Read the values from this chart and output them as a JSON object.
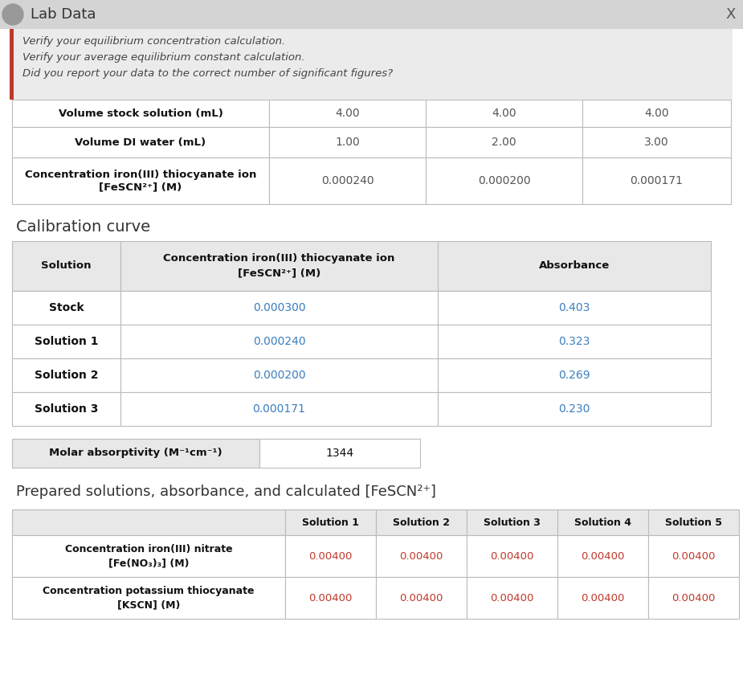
{
  "title": "Lab Data",
  "close_btn": "X",
  "alert_lines": [
    "Verify your equilibrium concentration calculation.",
    "Verify your average equilibrium constant calculation.",
    "Did you report your data to the correct number of significant figures?"
  ],
  "top_table": {
    "row_labels": [
      "Volume stock solution (mL)",
      "Volume DI water (mL)",
      "Concentration iron(III) thiocyanate ion\n[FeSCN²⁺] (M)"
    ],
    "values": [
      [
        "4.00",
        "4.00",
        "4.00"
      ],
      [
        "1.00",
        "2.00",
        "3.00"
      ],
      [
        "0.000240",
        "0.000200",
        "0.000171"
      ]
    ]
  },
  "section2_title": "Calibration curve",
  "calib_table": {
    "col_labels": [
      "Solution",
      "Concentration iron(III) thiocyanate ion\n[FeSCN²⁺] (M)",
      "Absorbance"
    ],
    "rows": [
      [
        "Stock",
        "0.000300",
        "0.403"
      ],
      [
        "Solution 1",
        "0.000240",
        "0.323"
      ],
      [
        "Solution 2",
        "0.000200",
        "0.269"
      ],
      [
        "Solution 3",
        "0.000171",
        "0.230"
      ]
    ]
  },
  "molar_label": "Molar absorptivity (M⁻¹cm⁻¹)",
  "molar_value": "1344",
  "section3_title": "Prepared solutions, absorbance, and calculated [FeSCN²⁺]",
  "bottom_table": {
    "col_labels": [
      "Solution 1",
      "Solution 2",
      "Solution 3",
      "Solution 4",
      "Solution 5"
    ],
    "row_labels": [
      "Concentration iron(III) nitrate\n[Fe(NO₃)₃] (M)",
      "Concentration potassium thiocyanate\n[KSCN] (M)"
    ],
    "values": [
      [
        "0.00400",
        "0.00400",
        "0.00400",
        "0.00400",
        "0.00400"
      ],
      [
        "0.00400",
        "0.00400",
        "0.00400",
        "0.00400",
        "0.00400"
      ]
    ]
  },
  "alert_bg": "#ebebeb",
  "alert_border": "#c0392b",
  "title_bar_bg": "#d4d4d4",
  "cell_data_color_top": "#555555",
  "cell_data_color_calib": "#3a7ebf",
  "cell_data_color_bottom": "#c0392b",
  "line_color": "#bbbbbb",
  "header_bg": "#e8e8e8",
  "white": "#ffffff",
  "bold_label_color": "#111111",
  "title_color": "#333333",
  "alert_text_color": "#444444",
  "section_title_color": "#333333"
}
